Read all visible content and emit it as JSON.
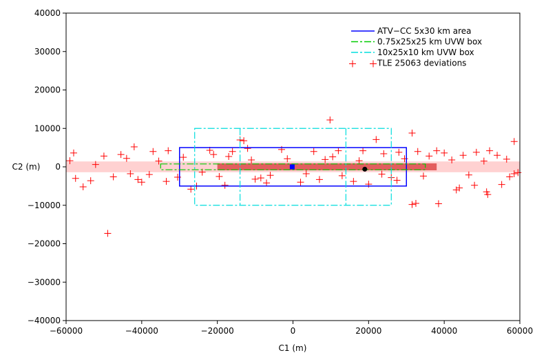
{
  "chart_data": {
    "type": "scatter",
    "title": "",
    "xlabel": "C1 (m)",
    "ylabel": "C2 (m)",
    "xlim": [
      -60000,
      60000
    ],
    "ylim": [
      -40000,
      40000
    ],
    "xticks": [
      "−60000",
      "−40000",
      "−20000",
      "0",
      "20000",
      "40000",
      "60000"
    ],
    "yticks": [
      "40000",
      "30000",
      "20000",
      "10000",
      "0",
      "−10000",
      "−20000",
      "−30000",
      "−40000"
    ],
    "grid": false,
    "legend_position": "top-right",
    "series": [
      {
        "name": "ATV−CC 5x30 km area",
        "kind": "rectangle",
        "line": "solid",
        "color": "#0000ff",
        "x": [
          -30000,
          30000
        ],
        "y": [
          -5000,
          5000
        ]
      },
      {
        "name": "0.75x25x25 km UVW box",
        "kind": "rectangle",
        "line": "dashdot",
        "color": "#00cc00",
        "x": [
          -35000,
          35000
        ],
        "y": [
          -750,
          750
        ]
      },
      {
        "name": "10x25x10 km UVW box",
        "kind": "rectangle",
        "line": "dashdot",
        "color": "#00dddd",
        "x": [
          -26000,
          26000
        ],
        "y": [
          -10000,
          10000
        ],
        "inner_x": [
          -14000,
          14000
        ]
      },
      {
        "name": "TLE 25063 deviations",
        "kind": "scatter",
        "marker": "+",
        "color": "#ff0000",
        "points": [
          [
            -49000,
            -17300
          ],
          [
            9800,
            12200
          ],
          [
            31500,
            8800
          ],
          [
            58500,
            6600
          ],
          [
            -42000,
            5200
          ],
          [
            -12000,
            4800
          ],
          [
            -14000,
            7000
          ],
          [
            -13000,
            6800
          ],
          [
            22000,
            7100
          ],
          [
            32500,
            -9500
          ],
          [
            31500,
            -9800
          ],
          [
            38500,
            -9600
          ],
          [
            51500,
            -7200
          ],
          [
            51200,
            -6500
          ],
          [
            44000,
            -5500
          ],
          [
            43200,
            -6000
          ],
          [
            48000,
            -4800
          ],
          [
            55200,
            -4600
          ],
          [
            57300,
            -2600
          ],
          [
            59500,
            -1500
          ],
          [
            -55500,
            -5200
          ],
          [
            -53500,
            -3600
          ],
          [
            -52200,
            600
          ],
          [
            -57500,
            -3000
          ],
          [
            -45500,
            3200
          ],
          [
            -40000,
            -4000
          ],
          [
            -38000,
            -2000
          ],
          [
            -37000,
            4000
          ],
          [
            -33000,
            4200
          ],
          [
            -33500,
            -3800
          ],
          [
            -27000,
            -5800
          ],
          [
            -25500,
            -5000
          ],
          [
            -22000,
            4300
          ],
          [
            -21000,
            3200
          ],
          [
            -18000,
            -4800
          ],
          [
            -16000,
            4000
          ],
          [
            -10000,
            -3200
          ],
          [
            -7000,
            -4200
          ],
          [
            -3000,
            4500
          ],
          [
            2000,
            -4000
          ],
          [
            5500,
            4000
          ],
          [
            7000,
            -3300
          ],
          [
            12000,
            4200
          ],
          [
            16000,
            -3800
          ],
          [
            18500,
            4200
          ],
          [
            20000,
            -4500
          ],
          [
            24000,
            3400
          ],
          [
            27500,
            -3500
          ],
          [
            28000,
            3800
          ],
          [
            33000,
            4000
          ],
          [
            36000,
            2800
          ],
          [
            38000,
            4200
          ],
          [
            40000,
            3600
          ],
          [
            45000,
            3000
          ],
          [
            48500,
            3800
          ],
          [
            52000,
            4200
          ],
          [
            54000,
            3000
          ],
          [
            56500,
            2000
          ],
          [
            -58000,
            3600
          ],
          [
            -59000,
            1600
          ],
          [
            -50000,
            2800
          ],
          [
            -47500,
            -2600
          ],
          [
            -44000,
            2200
          ],
          [
            -43000,
            -1800
          ],
          [
            -35500,
            1500
          ],
          [
            -29000,
            2500
          ],
          [
            -24000,
            -1400
          ],
          [
            -19500,
            -2500
          ],
          [
            -11000,
            1800
          ],
          [
            -6000,
            -2200
          ],
          [
            -1500,
            2100
          ],
          [
            3500,
            -1800
          ],
          [
            8500,
            1900
          ],
          [
            13000,
            -2300
          ],
          [
            17500,
            1600
          ],
          [
            23500,
            -1900
          ],
          [
            29500,
            2100
          ],
          [
            34500,
            -2400
          ],
          [
            42000,
            1800
          ],
          [
            46500,
            -2100
          ],
          [
            50500,
            1500
          ],
          [
            58500,
            -1800
          ],
          [
            -41000,
            -3300
          ],
          [
            -30500,
            -2700
          ],
          [
            -17000,
            2700
          ],
          [
            -8500,
            -2900
          ],
          [
            10500,
            2600
          ],
          [
            26000,
            -2800
          ]
        ]
      }
    ],
    "markers": [
      {
        "x": -200,
        "y": 0,
        "color": "#0000ff",
        "shape": "square"
      },
      {
        "x": 19000,
        "y": -600,
        "color": "#000000",
        "shape": "circle"
      }
    ]
  }
}
